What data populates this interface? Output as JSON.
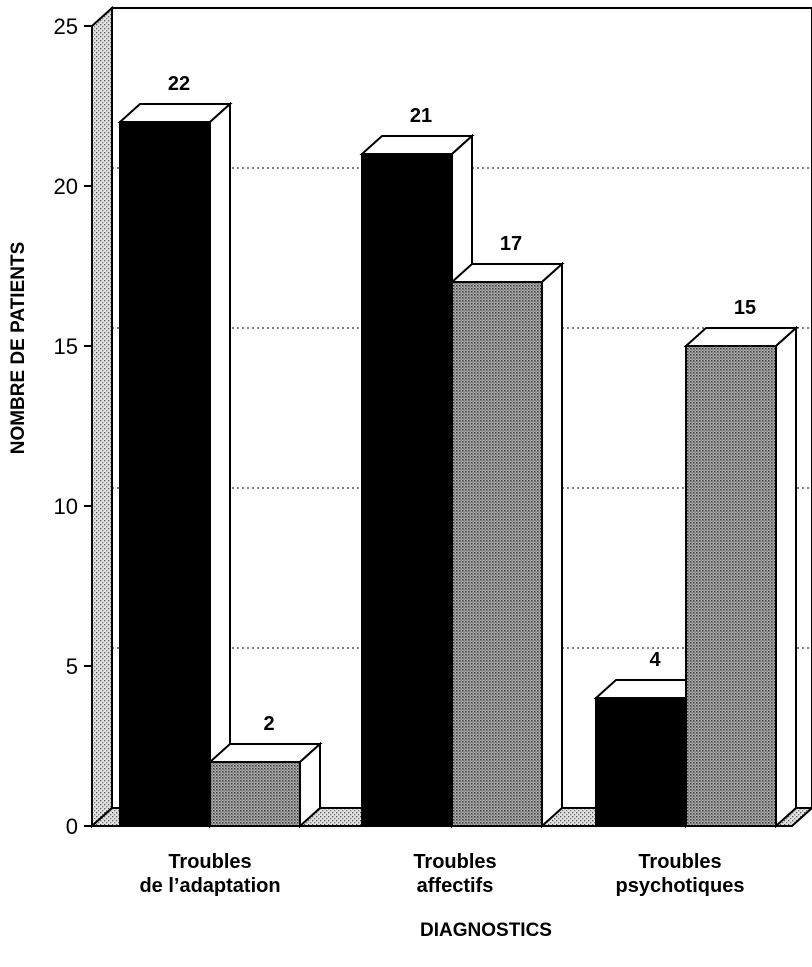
{
  "chart_data": {
    "type": "bar",
    "style": "3d-grouped",
    "categories": [
      "Troubles\nde l’adaptation",
      "Troubles\naffectifs",
      "Troubles\npsychotiques"
    ],
    "series": [
      {
        "values": [
          22,
          21,
          4
        ],
        "color": "#000000",
        "pattern": "solid"
      },
      {
        "values": [
          2,
          17,
          15
        ],
        "color": "#8c8c8c",
        "pattern": "dotted-grey"
      }
    ],
    "ylim": [
      0,
      25
    ],
    "yticks": [
      0,
      5,
      10,
      15,
      20,
      25
    ],
    "grid": "dotted-horizontal",
    "ylabel": "NOMBRE DE PATIENTS",
    "xlabel": "DIAGNOSTICS",
    "title": ""
  }
}
